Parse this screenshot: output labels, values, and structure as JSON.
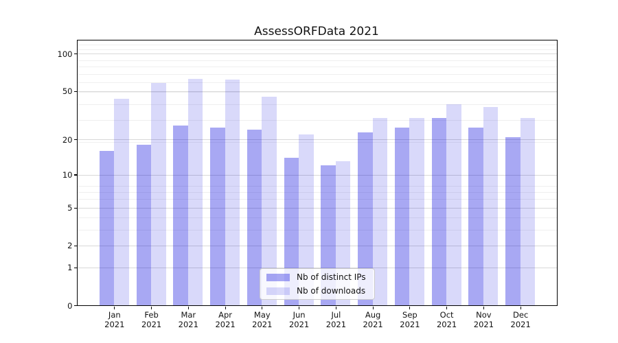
{
  "title": "AssessORFData 2021",
  "chart_data": {
    "type": "bar",
    "title": "AssessORFData 2021",
    "months": [
      "Jan",
      "Feb",
      "Mar",
      "Apr",
      "May",
      "Jun",
      "Jul",
      "Aug",
      "Sep",
      "Oct",
      "Nov",
      "Dec"
    ],
    "year": "2021",
    "series": [
      {
        "name": "Nb of distinct IPs",
        "color": "rgba(0,0,220,0.34)",
        "values": [
          16,
          18,
          26,
          25,
          24,
          14,
          12,
          23,
          25,
          30,
          25,
          21
        ]
      },
      {
        "name": "Nb of downloads",
        "color": "rgba(0,0,220,0.15)",
        "values": [
          43,
          58,
          63,
          62,
          45,
          22,
          13,
          30,
          30,
          39,
          37,
          30
        ]
      }
    ],
    "y_scale": "log10(value+1)",
    "y_ticks": [
      0,
      1,
      2,
      5,
      10,
      20,
      50,
      100
    ],
    "y_minor_gridlines": [
      3,
      4,
      6,
      7,
      8,
      19,
      29,
      39,
      49,
      59,
      69,
      79,
      89,
      109,
      119
    ],
    "y_max": 127,
    "grid": true,
    "legend_position": "lower center",
    "colors": {
      "grid_major": "#d8d8d8",
      "grid_minor": "#efefef",
      "spine": "#000000",
      "text": "#111111"
    }
  }
}
